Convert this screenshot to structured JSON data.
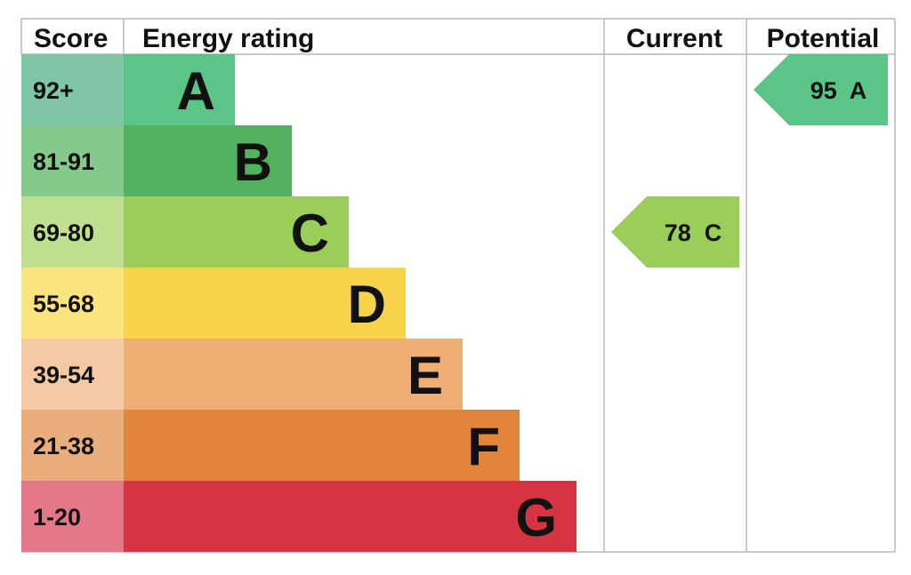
{
  "chart_data": {
    "type": "table",
    "headers": {
      "score": "Score",
      "rating": "Energy rating",
      "current": "Current",
      "potential": "Potential"
    },
    "bands": [
      {
        "score": "92+",
        "letter": "A",
        "color": "#5bc587",
        "score_color": "#7ec6a6"
      },
      {
        "score": "81-91",
        "letter": "B",
        "color": "#53b162",
        "score_color": "#86c98c"
      },
      {
        "score": "69-80",
        "letter": "C",
        "color": "#9bcd5a",
        "score_color": "#c0df90"
      },
      {
        "score": "55-68",
        "letter": "D",
        "color": "#f7d449",
        "score_color": "#fae47e"
      },
      {
        "score": "39-54",
        "letter": "E",
        "color": "#efae72",
        "score_color": "#f5c9a3"
      },
      {
        "score": "21-38",
        "letter": "F",
        "color": "#e0853b",
        "score_color": "#e9ae7c"
      },
      {
        "score": "1-20",
        "letter": "G",
        "color": "#d63442",
        "score_color": "#e4788a"
      }
    ],
    "current": {
      "value": 78,
      "letter": "C",
      "label": "78  C",
      "color": "#9bcd5a"
    },
    "potential": {
      "value": 95,
      "letter": "A",
      "label": "95  A",
      "color": "#5bc587"
    },
    "grid_color": "#b8b8b8"
  }
}
